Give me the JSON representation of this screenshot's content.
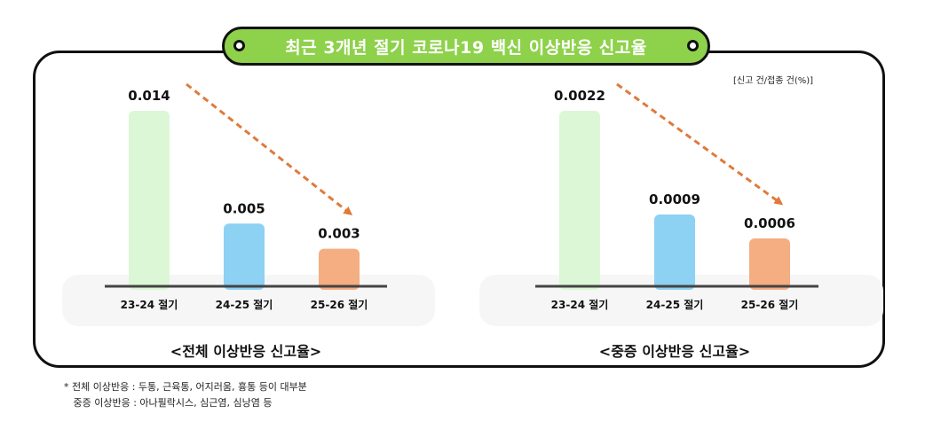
{
  "title": "최근 3개년 절기 코로나19 백신 이상반응 신고율",
  "unit_note": "[신고 건/접종 건(%)]",
  "colors": {
    "title_bg": "#8ed14b",
    "bar_1": "#dcf7d6",
    "bar_2": "#8dd1f3",
    "bar_3": "#f5ad82",
    "trend_arrow": "#e07a3a",
    "baseline": "#444444",
    "panel_bg": "#f6f6f6"
  },
  "chart_data": [
    {
      "type": "bar",
      "title": "<전체 이상반응 신고율>",
      "categories": [
        "23-24 절기",
        "24-25 절기",
        "25-26 절기"
      ],
      "values": [
        0.014,
        0.005,
        0.003
      ],
      "value_labels": [
        "0.014",
        "0.005",
        "0.003"
      ],
      "ylim": [
        0,
        0.014
      ],
      "trend": "decreasing"
    },
    {
      "type": "bar",
      "title": "<중증 이상반응 신고율>",
      "categories": [
        "23-24 절기",
        "24-25 절기",
        "25-26 절기"
      ],
      "values": [
        0.0022,
        0.0009,
        0.0006
      ],
      "value_labels": [
        "0.0022",
        "0.0009",
        "0.0006"
      ],
      "ylim": [
        0,
        0.0022
      ],
      "trend": "decreasing"
    }
  ],
  "footnotes": [
    "* 전체 이상반응 : 두통, 근육통, 어지러움, 흉통 등이 대부분",
    "   중증 이상반응 : 아나필락시스, 심근염, 심낭염 등"
  ]
}
